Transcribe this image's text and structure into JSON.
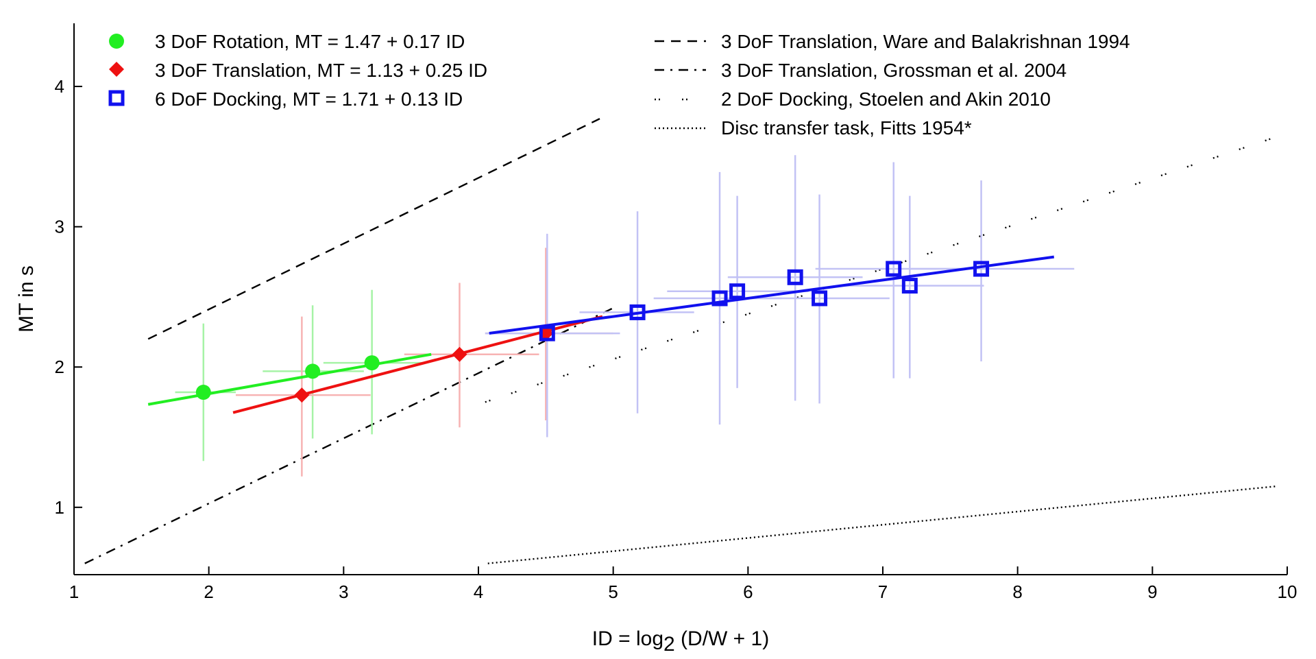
{
  "chart_data": {
    "type": "scatter",
    "xlabel": "ID = log",
    "xlabel_sub": "2",
    "xlabel_tail": " (D/W + 1)",
    "ylabel": "MT in s",
    "xlim": [
      1,
      10
    ],
    "ylim": [
      0.52,
      4.45
    ],
    "xticks": [
      1,
      2,
      3,
      4,
      5,
      6,
      7,
      8,
      9,
      10
    ],
    "yticks": [
      1,
      2,
      3,
      4
    ],
    "grid": false,
    "legend_placement": "top",
    "series": [
      {
        "name": "3 DoF Rotation, MT = 1.47 + 0.17 ID",
        "marker": "circle",
        "color": "#22ee22",
        "error_color": "#a6f3a6",
        "points": [
          {
            "x": 1.96,
            "y": 1.82,
            "xerr": [
              1.75,
              2.2
            ],
            "yerr": [
              1.33,
              2.31
            ]
          },
          {
            "x": 2.77,
            "y": 1.97,
            "xerr": [
              2.4,
              3.15
            ],
            "yerr": [
              1.49,
              2.44
            ]
          },
          {
            "x": 3.21,
            "y": 2.03,
            "xerr": [
              2.85,
              3.6
            ],
            "yerr": [
              1.52,
              2.55
            ]
          }
        ],
        "fit": {
          "intercept": 1.47,
          "slope": 0.17,
          "x_range": [
            1.55,
            3.65
          ]
        }
      },
      {
        "name": "3 DoF Translation, MT = 1.13 + 0.25 ID",
        "marker": "diamond",
        "color": "#ee1111",
        "error_color": "#f7b3b3",
        "points": [
          {
            "x": 2.69,
            "y": 1.8,
            "xerr": [
              2.2,
              3.2
            ],
            "yerr": [
              1.22,
              2.36
            ]
          },
          {
            "x": 3.86,
            "y": 2.09,
            "xerr": [
              3.45,
              4.45
            ],
            "yerr": [
              1.57,
              2.6
            ]
          },
          {
            "x": 4.5,
            "y": 2.24,
            "xerr": [
              4.05,
              5.0
            ],
            "yerr": [
              1.62,
              2.85
            ]
          }
        ],
        "fit": {
          "intercept": 1.13,
          "slope": 0.25,
          "x_range": [
            2.18,
            4.92
          ]
        }
      },
      {
        "name": "6 DoF Docking, MT = 1.71 + 0.13 ID",
        "marker": "square",
        "color": "#1111ee",
        "error_color": "#c2c2f5",
        "points": [
          {
            "x": 4.51,
            "y": 2.24,
            "xerr": [
              4.05,
              5.05
            ],
            "yerr": [
              1.5,
              2.95
            ]
          },
          {
            "x": 5.18,
            "y": 2.39,
            "xerr": [
              4.75,
              5.6
            ],
            "yerr": [
              1.67,
              3.11
            ]
          },
          {
            "x": 5.79,
            "y": 2.49,
            "xerr": [
              5.3,
              6.25
            ],
            "yerr": [
              1.59,
              3.39
            ]
          },
          {
            "x": 5.92,
            "y": 2.54,
            "xerr": [
              5.4,
              6.45
            ],
            "yerr": [
              1.85,
              3.22
            ]
          },
          {
            "x": 6.35,
            "y": 2.64,
            "xerr": [
              5.85,
              6.85
            ],
            "yerr": [
              1.76,
              3.51
            ]
          },
          {
            "x": 6.53,
            "y": 2.49,
            "xerr": [
              6.0,
              7.05
            ],
            "yerr": [
              1.74,
              3.23
            ]
          },
          {
            "x": 7.08,
            "y": 2.7,
            "xerr": [
              6.5,
              7.65
            ],
            "yerr": [
              1.92,
              3.46
            ]
          },
          {
            "x": 7.2,
            "y": 2.58,
            "xerr": [
              6.7,
              7.75
            ],
            "yerr": [
              1.92,
              3.22
            ]
          },
          {
            "x": 7.73,
            "y": 2.7,
            "xerr": [
              7.2,
              8.42
            ],
            "yerr": [
              2.04,
              3.33
            ]
          }
        ],
        "fit": {
          "intercept": 1.71,
          "slope": 0.13,
          "x_range": [
            4.08,
            8.27
          ]
        }
      }
    ],
    "reference_lines": [
      {
        "name": "3 DoF Translation, Ware and Balakrishnan 1994",
        "style": "dashed",
        "x": [
          1.55,
          4.9
        ],
        "y": [
          2.2,
          3.77
        ]
      },
      {
        "name": "3 DoF Translation, Grossman et al. 2004",
        "style": "dashdot",
        "x": [
          1.08,
          5.02
        ],
        "y": [
          0.6,
          2.43
        ]
      },
      {
        "name": "2 DoF Docking, Stoelen and Akin 2010",
        "style": "sparse-dotted",
        "x": [
          4.05,
          9.95
        ],
        "y": [
          1.75,
          3.65
        ]
      },
      {
        "name": "Disc transfer task, Fitts 1954*",
        "style": "dotted",
        "x": [
          4.07,
          9.92
        ],
        "y": [
          0.6,
          1.15
        ]
      }
    ]
  }
}
